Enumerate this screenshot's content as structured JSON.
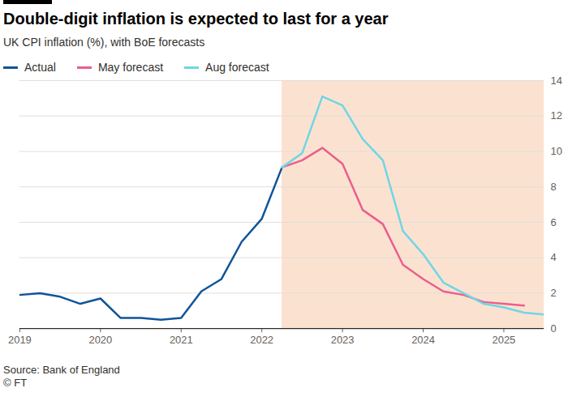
{
  "chart_data": {
    "type": "line",
    "title": "Double-digit inflation is expected to last for a year",
    "subtitle": "UK CPI inflation (%), with BoE forecasts",
    "source": "Source: Bank of England",
    "credit": "© FT",
    "x": [
      2019,
      2019.25,
      2019.5,
      2019.75,
      2020,
      2020.25,
      2020.5,
      2020.75,
      2021,
      2021.25,
      2021.5,
      2021.75,
      2022,
      2022.25,
      2022.5,
      2022.75,
      2023,
      2023.25,
      2023.5,
      2023.75,
      2024,
      2024.25,
      2024.5,
      2024.75,
      2025,
      2025.25,
      2025.5
    ],
    "xlim": [
      2019,
      2025.5
    ],
    "xticks": [
      2019,
      2020,
      2021,
      2022,
      2023,
      2024,
      2025
    ],
    "ylim": [
      0,
      14
    ],
    "yticks": [
      0,
      2,
      4,
      6,
      8,
      10,
      12,
      14
    ],
    "grid": true,
    "legend": "top-left",
    "series": [
      {
        "name": "Actual",
        "color": "#0f5499",
        "values": [
          1.9,
          2.0,
          1.8,
          1.4,
          1.7,
          0.6,
          0.6,
          0.5,
          0.6,
          2.1,
          2.8,
          4.9,
          6.2,
          9.1,
          null,
          null,
          null,
          null,
          null,
          null,
          null,
          null,
          null,
          null,
          null,
          null,
          null
        ]
      },
      {
        "name": "May forecast",
        "color": "#eb5e8d",
        "values": [
          null,
          null,
          null,
          null,
          null,
          null,
          null,
          null,
          null,
          null,
          null,
          null,
          null,
          9.1,
          9.5,
          10.2,
          9.3,
          6.7,
          5.9,
          3.6,
          2.8,
          2.1,
          1.9,
          1.5,
          1.4,
          1.3,
          null
        ]
      },
      {
        "name": "Aug forecast",
        "color": "#6fd6e6",
        "values": [
          null,
          null,
          null,
          null,
          null,
          null,
          null,
          null,
          null,
          null,
          null,
          null,
          null,
          9.1,
          9.9,
          13.1,
          12.6,
          10.7,
          9.5,
          5.5,
          4.2,
          2.6,
          2.0,
          1.4,
          1.2,
          0.9,
          0.8
        ]
      }
    ]
  }
}
